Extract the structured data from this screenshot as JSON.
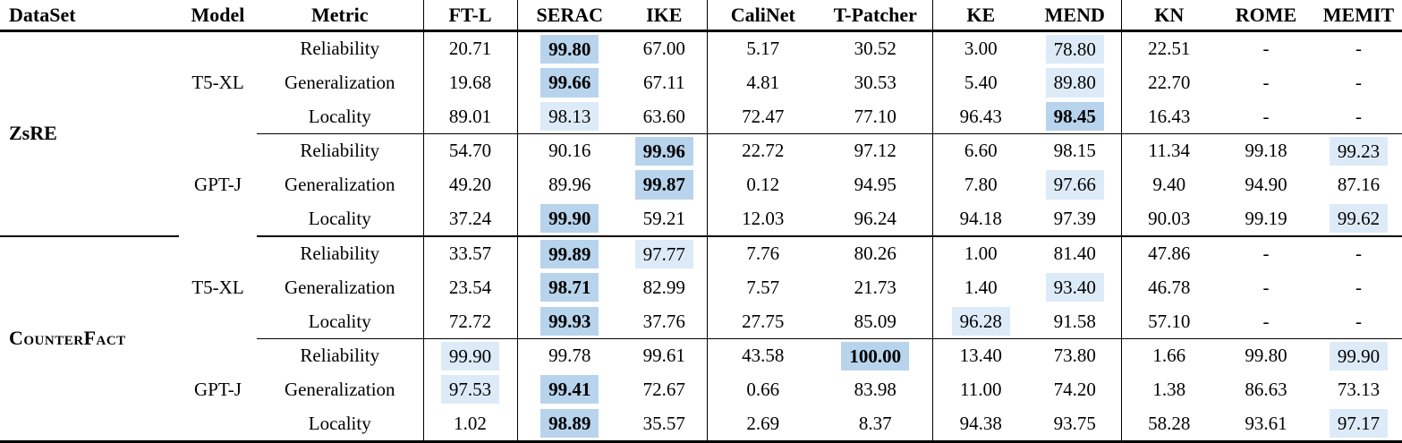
{
  "page": {
    "background": "#ffffff"
  },
  "colors": {
    "highlight_strong": "#b8d4ec",
    "highlight_light": "#ddebf8",
    "rule": "#000000",
    "text": "#000000"
  },
  "table": {
    "headers": [
      "DataSet",
      "Model",
      "Metric",
      "FT-L",
      "SERAC",
      "IKE",
      "CaliNet",
      "T-Patcher",
      "KE",
      "MEND",
      "KN",
      "ROME",
      "MEMIT"
    ],
    "header_slugs": [
      "dataset",
      "model",
      "metric",
      "ft-l",
      "serac",
      "ike",
      "calinet",
      "t-patcher",
      "ke",
      "mend",
      "kn",
      "rome",
      "memit"
    ],
    "groups": [
      {
        "dataset": "ZsRE",
        "smallcaps": false,
        "blocks": [
          {
            "model": "T5-XL",
            "rows": [
              {
                "metric": "Reliability",
                "values": [
                  {
                    "v": "20.71"
                  },
                  {
                    "v": "99.80",
                    "hl": "strong",
                    "b": true
                  },
                  {
                    "v": "67.00"
                  },
                  {
                    "v": "5.17"
                  },
                  {
                    "v": "30.52"
                  },
                  {
                    "v": "3.00"
                  },
                  {
                    "v": "78.80",
                    "hl": "light"
                  },
                  {
                    "v": "22.51"
                  },
                  {
                    "v": "-"
                  },
                  {
                    "v": "-"
                  }
                ]
              },
              {
                "metric": "Generalization",
                "values": [
                  {
                    "v": "19.68"
                  },
                  {
                    "v": "99.66",
                    "hl": "strong",
                    "b": true
                  },
                  {
                    "v": "67.11"
                  },
                  {
                    "v": "4.81"
                  },
                  {
                    "v": "30.53"
                  },
                  {
                    "v": "5.40"
                  },
                  {
                    "v": "89.80",
                    "hl": "light"
                  },
                  {
                    "v": "22.70"
                  },
                  {
                    "v": "-"
                  },
                  {
                    "v": "-"
                  }
                ]
              },
              {
                "metric": "Locality",
                "values": [
                  {
                    "v": "89.01"
                  },
                  {
                    "v": "98.13",
                    "hl": "light"
                  },
                  {
                    "v": "63.60"
                  },
                  {
                    "v": "72.47"
                  },
                  {
                    "v": "77.10"
                  },
                  {
                    "v": "96.43"
                  },
                  {
                    "v": "98.45",
                    "hl": "strong",
                    "b": true
                  },
                  {
                    "v": "16.43"
                  },
                  {
                    "v": "-"
                  },
                  {
                    "v": "-"
                  }
                ]
              }
            ]
          },
          {
            "model": "GPT-J",
            "rows": [
              {
                "metric": "Reliability",
                "values": [
                  {
                    "v": "54.70"
                  },
                  {
                    "v": "90.16"
                  },
                  {
                    "v": "99.96",
                    "hl": "strong",
                    "b": true
                  },
                  {
                    "v": "22.72"
                  },
                  {
                    "v": "97.12"
                  },
                  {
                    "v": "6.60"
                  },
                  {
                    "v": "98.15"
                  },
                  {
                    "v": "11.34"
                  },
                  {
                    "v": "99.18"
                  },
                  {
                    "v": "99.23",
                    "hl": "light"
                  }
                ]
              },
              {
                "metric": "Generalization",
                "values": [
                  {
                    "v": "49.20"
                  },
                  {
                    "v": "89.96"
                  },
                  {
                    "v": "99.87",
                    "hl": "strong",
                    "b": true
                  },
                  {
                    "v": "0.12"
                  },
                  {
                    "v": "94.95"
                  },
                  {
                    "v": "7.80"
                  },
                  {
                    "v": "97.66",
                    "hl": "light"
                  },
                  {
                    "v": "9.40"
                  },
                  {
                    "v": "94.90"
                  },
                  {
                    "v": "87.16"
                  }
                ]
              },
              {
                "metric": "Locality",
                "values": [
                  {
                    "v": "37.24"
                  },
                  {
                    "v": "99.90",
                    "hl": "strong",
                    "b": true
                  },
                  {
                    "v": "59.21"
                  },
                  {
                    "v": "12.03"
                  },
                  {
                    "v": "96.24"
                  },
                  {
                    "v": "94.18"
                  },
                  {
                    "v": "97.39"
                  },
                  {
                    "v": "90.03"
                  },
                  {
                    "v": "99.19"
                  },
                  {
                    "v": "99.62",
                    "hl": "light"
                  }
                ]
              }
            ]
          }
        ]
      },
      {
        "dataset": "CounterFact",
        "smallcaps": true,
        "blocks": [
          {
            "model": "T5-XL",
            "rows": [
              {
                "metric": "Reliability",
                "values": [
                  {
                    "v": "33.57"
                  },
                  {
                    "v": "99.89",
                    "hl": "strong",
                    "b": true
                  },
                  {
                    "v": "97.77",
                    "hl": "light"
                  },
                  {
                    "v": "7.76"
                  },
                  {
                    "v": "80.26"
                  },
                  {
                    "v": "1.00"
                  },
                  {
                    "v": "81.40"
                  },
                  {
                    "v": "47.86"
                  },
                  {
                    "v": "-"
                  },
                  {
                    "v": "-"
                  }
                ]
              },
              {
                "metric": "Generalization",
                "values": [
                  {
                    "v": "23.54"
                  },
                  {
                    "v": "98.71",
                    "hl": "strong",
                    "b": true
                  },
                  {
                    "v": "82.99"
                  },
                  {
                    "v": "7.57"
                  },
                  {
                    "v": "21.73"
                  },
                  {
                    "v": "1.40"
                  },
                  {
                    "v": "93.40",
                    "hl": "light"
                  },
                  {
                    "v": "46.78"
                  },
                  {
                    "v": "-"
                  },
                  {
                    "v": "-"
                  }
                ]
              },
              {
                "metric": "Locality",
                "values": [
                  {
                    "v": "72.72"
                  },
                  {
                    "v": "99.93",
                    "hl": "strong",
                    "b": true
                  },
                  {
                    "v": "37.76"
                  },
                  {
                    "v": "27.75"
                  },
                  {
                    "v": "85.09"
                  },
                  {
                    "v": "96.28",
                    "hl": "light"
                  },
                  {
                    "v": "91.58"
                  },
                  {
                    "v": "57.10"
                  },
                  {
                    "v": "-"
                  },
                  {
                    "v": "-"
                  }
                ]
              }
            ]
          },
          {
            "model": "GPT-J",
            "rows": [
              {
                "metric": "Reliability",
                "values": [
                  {
                    "v": "99.90",
                    "hl": "light"
                  },
                  {
                    "v": "99.78"
                  },
                  {
                    "v": "99.61"
                  },
                  {
                    "v": "43.58"
                  },
                  {
                    "v": "100.00",
                    "hl": "strong",
                    "b": true
                  },
                  {
                    "v": "13.40"
                  },
                  {
                    "v": "73.80"
                  },
                  {
                    "v": "1.66"
                  },
                  {
                    "v": "99.80"
                  },
                  {
                    "v": "99.90",
                    "hl": "light"
                  }
                ]
              },
              {
                "metric": "Generalization",
                "values": [
                  {
                    "v": "97.53",
                    "hl": "light"
                  },
                  {
                    "v": "99.41",
                    "hl": "strong",
                    "b": true
                  },
                  {
                    "v": "72.67"
                  },
                  {
                    "v": "0.66"
                  },
                  {
                    "v": "83.98"
                  },
                  {
                    "v": "11.00"
                  },
                  {
                    "v": "74.20"
                  },
                  {
                    "v": "1.38"
                  },
                  {
                    "v": "86.63"
                  },
                  {
                    "v": "73.13"
                  }
                ]
              },
              {
                "metric": "Locality",
                "values": [
                  {
                    "v": "1.02"
                  },
                  {
                    "v": "98.89",
                    "hl": "strong",
                    "b": true
                  },
                  {
                    "v": "35.57"
                  },
                  {
                    "v": "2.69"
                  },
                  {
                    "v": "8.37"
                  },
                  {
                    "v": "94.38"
                  },
                  {
                    "v": "93.75"
                  },
                  {
                    "v": "58.28"
                  },
                  {
                    "v": "93.61"
                  },
                  {
                    "v": "97.17",
                    "hl": "light"
                  }
                ]
              }
            ]
          }
        ]
      }
    ]
  }
}
